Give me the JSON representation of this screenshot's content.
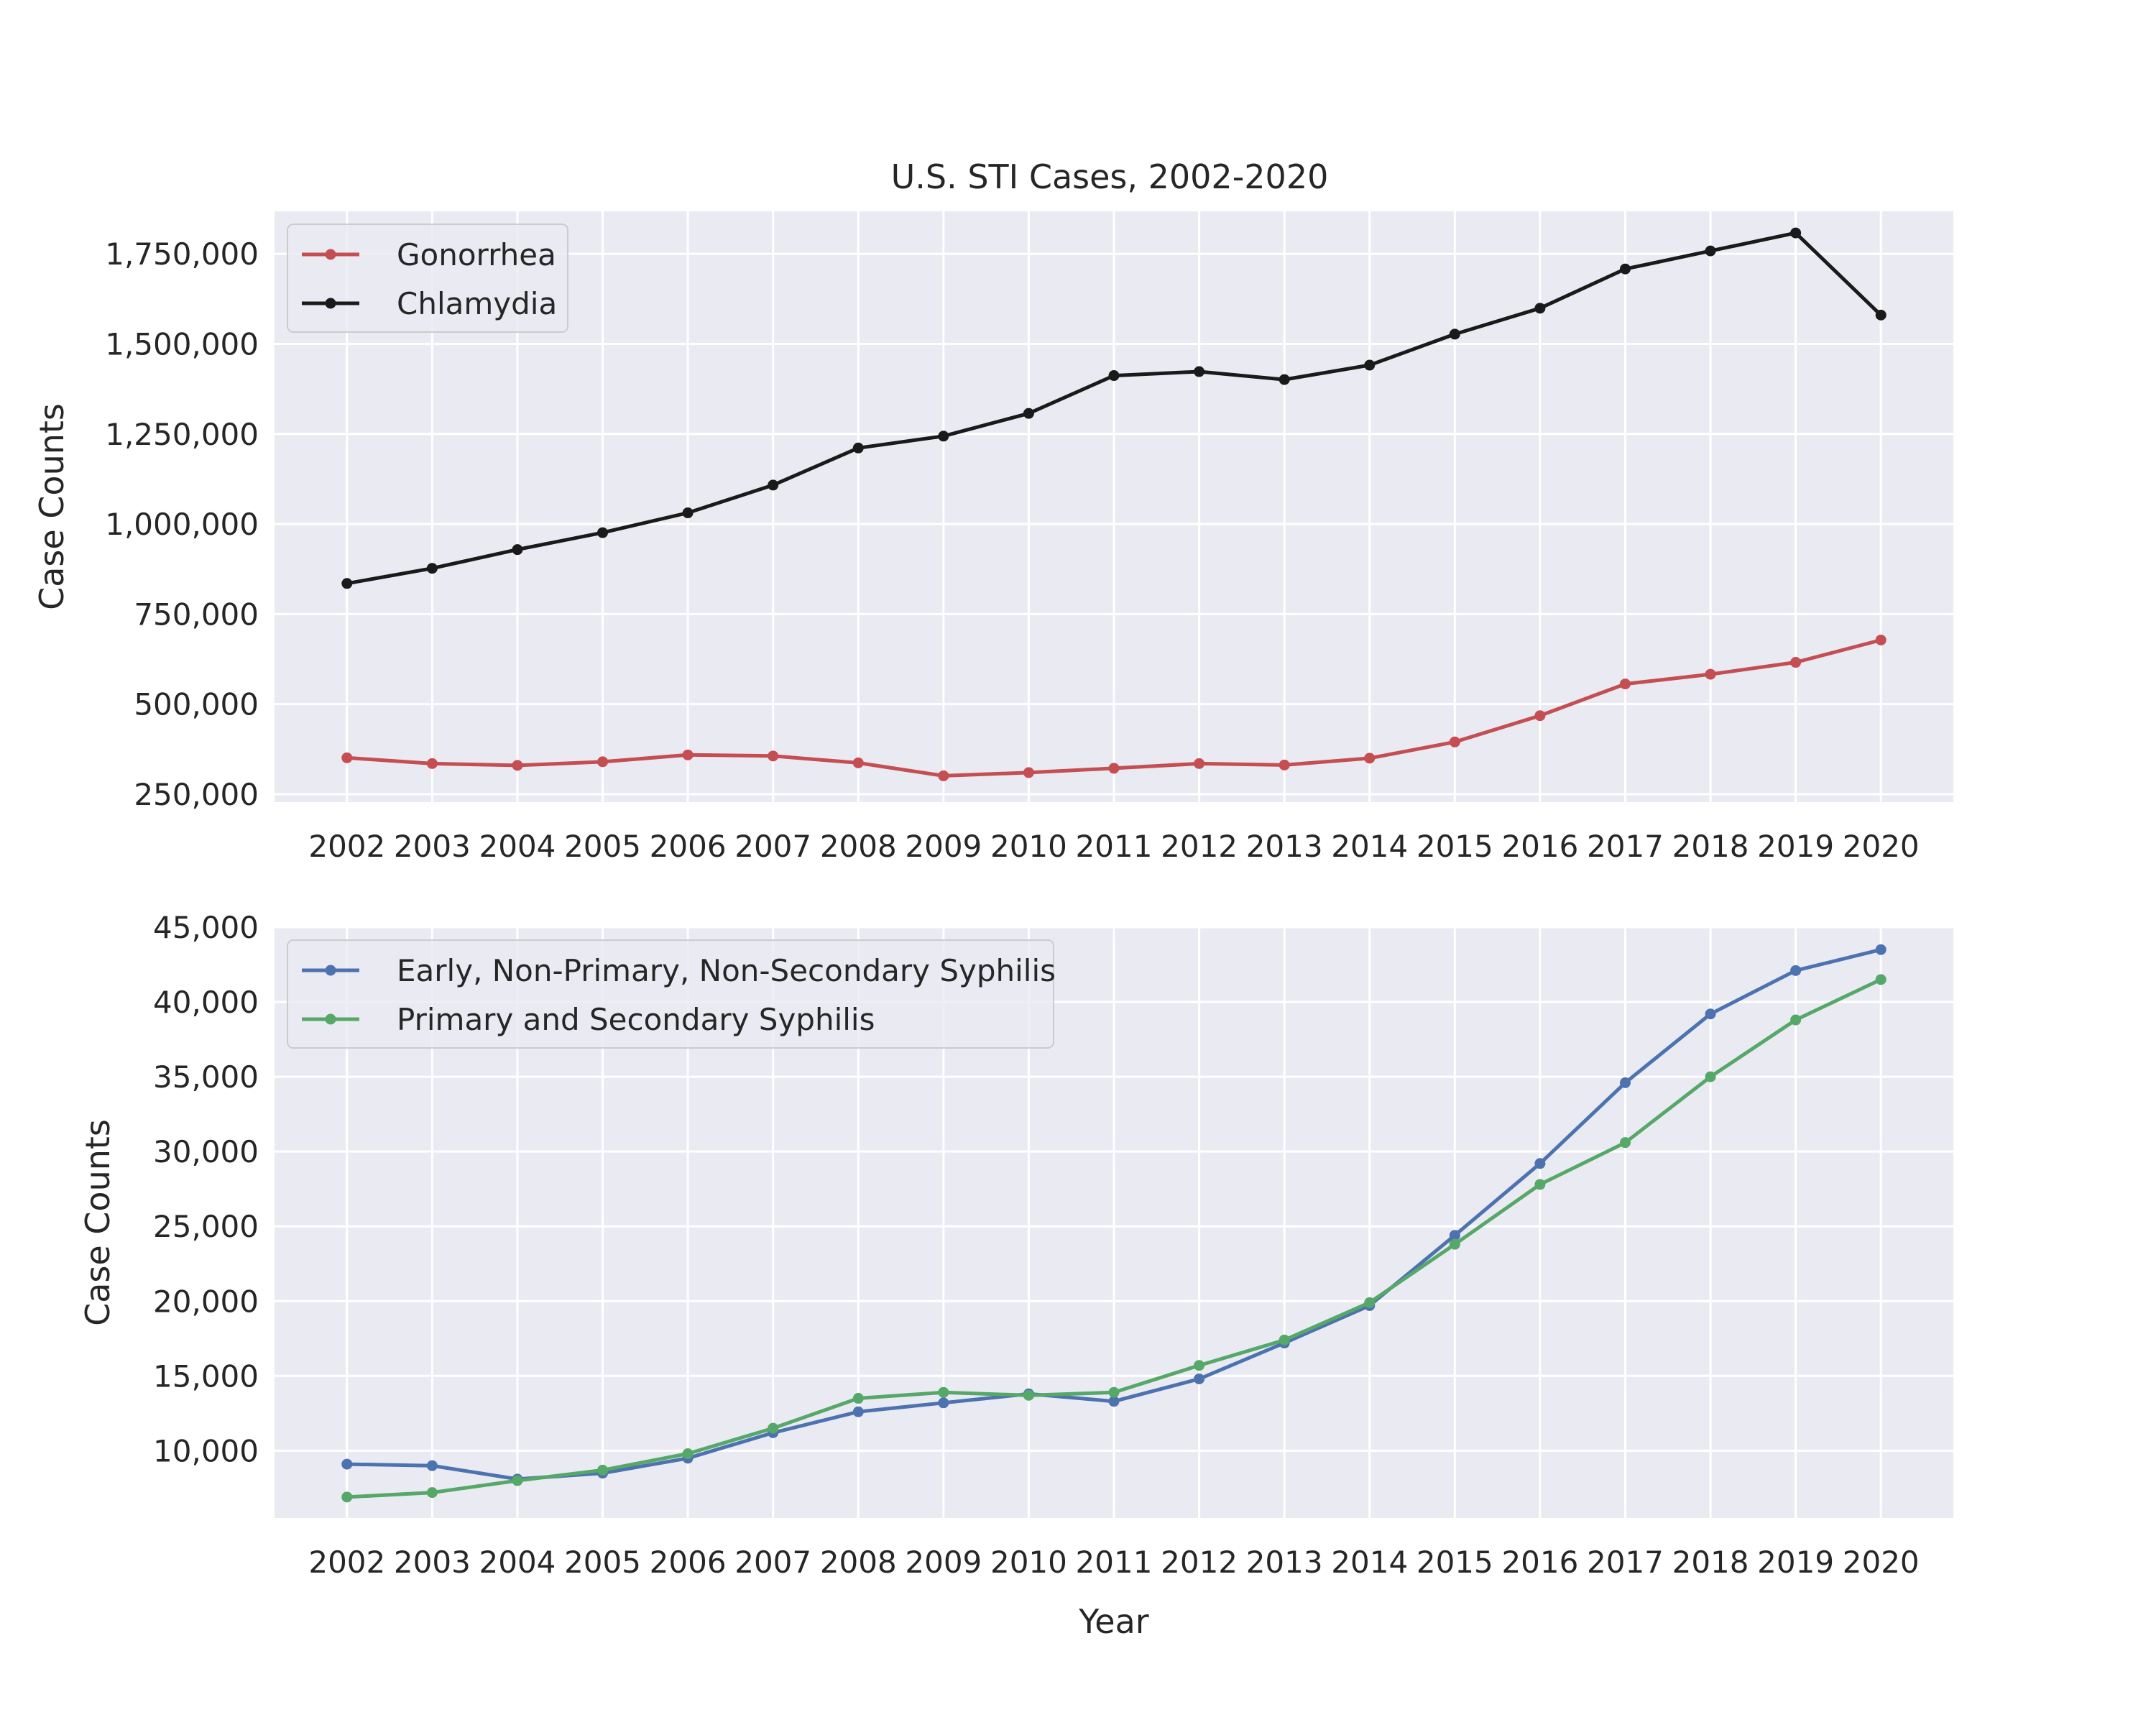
{
  "chart_data": [
    {
      "type": "line",
      "title": "U.S. STI Cases, 2002-2020",
      "xlabel": "",
      "ylabel": "Case Counts",
      "x": [
        2002,
        2003,
        2004,
        2005,
        2006,
        2007,
        2008,
        2009,
        2010,
        2011,
        2012,
        2013,
        2014,
        2015,
        2016,
        2017,
        2018,
        2019,
        2020
      ],
      "xlim": [
        2001.15,
        2020.85
      ],
      "ylim": [
        228000,
        1868000
      ],
      "yticks": [
        250000,
        500000,
        750000,
        1000000,
        1250000,
        1500000,
        1750000
      ],
      "ytick_labels": [
        "250,000",
        "500,000",
        "750,000",
        "1,000,000",
        "1,250,000",
        "1,500,000",
        "1,750,000"
      ],
      "xtick_labels": [
        "2002",
        "2003",
        "2004",
        "2005",
        "2006",
        "2007",
        "2008",
        "2009",
        "2010",
        "2011",
        "2012",
        "2013",
        "2014",
        "2015",
        "2016",
        "2017",
        "2018",
        "2019",
        "2020"
      ],
      "grid": true,
      "legend_position": "upper-left",
      "series": [
        {
          "name": "Gonorrhea",
          "color": "#c44e52",
          "values": [
            351000,
            335000,
            330000,
            340000,
            359000,
            356000,
            337000,
            301000,
            310000,
            322000,
            335000,
            331000,
            350000,
            395000,
            468000,
            556000,
            583000,
            616000,
            678000
          ]
        },
        {
          "name": "Chlamydia",
          "color": "#1a1a1a",
          "values": [
            835000,
            877000,
            929000,
            976000,
            1031000,
            1108000,
            1211000,
            1244000,
            1307000,
            1412000,
            1423000,
            1401000,
            1441000,
            1527000,
            1599000,
            1708000,
            1758000,
            1808000,
            1580000
          ]
        }
      ]
    },
    {
      "type": "line",
      "title": "",
      "xlabel": "Year",
      "ylabel": "Case Counts",
      "x": [
        2002,
        2003,
        2004,
        2005,
        2006,
        2007,
        2008,
        2009,
        2010,
        2011,
        2012,
        2013,
        2014,
        2015,
        2016,
        2017,
        2018,
        2019,
        2020
      ],
      "xlim": [
        2001.15,
        2020.85
      ],
      "ylim": [
        5500,
        45000
      ],
      "yticks": [
        10000,
        15000,
        20000,
        25000,
        30000,
        35000,
        40000,
        45000
      ],
      "ytick_labels": [
        "10,000",
        "15,000",
        "20,000",
        "25,000",
        "30,000",
        "35,000",
        "40,000",
        "45,000"
      ],
      "xtick_labels": [
        "2002",
        "2003",
        "2004",
        "2005",
        "2006",
        "2007",
        "2008",
        "2009",
        "2010",
        "2011",
        "2012",
        "2013",
        "2014",
        "2015",
        "2016",
        "2017",
        "2018",
        "2019",
        "2020"
      ],
      "grid": true,
      "legend_position": "upper-left",
      "series": [
        {
          "name": "Early, Non-Primary, Non-Secondary Syphilis",
          "color": "#4c72b0",
          "values": [
            9100,
            9000,
            8100,
            8500,
            9500,
            11200,
            12600,
            13200,
            13800,
            13300,
            14800,
            17200,
            19700,
            24400,
            29200,
            34600,
            39200,
            42100,
            43500
          ]
        },
        {
          "name": "Primary and Secondary Syphilis",
          "color": "#55a868",
          "values": [
            6900,
            7200,
            8000,
            8700,
            9800,
            11500,
            13500,
            13900,
            13700,
            13900,
            15700,
            17400,
            19900,
            23800,
            27800,
            30600,
            35000,
            38800,
            41500
          ]
        }
      ]
    }
  ]
}
